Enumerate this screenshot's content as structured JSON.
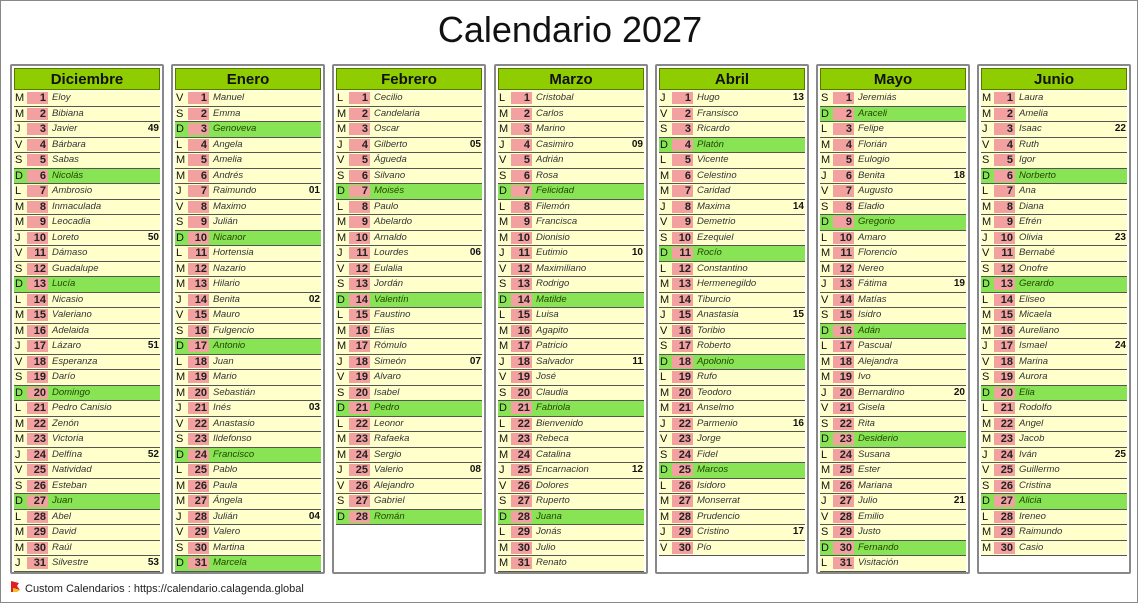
{
  "title": "Calendario 2027",
  "footer": "Custom Calendarios : https://calendario.calagenda.global",
  "colors": {
    "header": "#8fcc00",
    "row": "#ffffcc",
    "sunday": "#88e455",
    "day_box": "#f2a0a0"
  },
  "months": [
    {
      "name": "Diciembre",
      "days": [
        [
          "M",
          1,
          "Eloy",
          ""
        ],
        [
          "M",
          2,
          "Bibiana",
          ""
        ],
        [
          "J",
          3,
          "Javier",
          "49"
        ],
        [
          "V",
          4,
          "Bárbara",
          ""
        ],
        [
          "S",
          5,
          "Sabas",
          ""
        ],
        [
          "D",
          6,
          "Nicolás",
          ""
        ],
        [
          "L",
          7,
          "Ambrosio",
          ""
        ],
        [
          "M",
          8,
          "Inmaculada",
          ""
        ],
        [
          "M",
          9,
          "Leocadia",
          ""
        ],
        [
          "J",
          10,
          "Loreto",
          "50"
        ],
        [
          "V",
          11,
          "Dámaso",
          ""
        ],
        [
          "S",
          12,
          "Guadalupe",
          ""
        ],
        [
          "D",
          13,
          "Lucía",
          ""
        ],
        [
          "L",
          14,
          "Nicasio",
          ""
        ],
        [
          "M",
          15,
          "Valeriano",
          ""
        ],
        [
          "M",
          16,
          "Adelaida",
          ""
        ],
        [
          "J",
          17,
          "Lázaro",
          "51"
        ],
        [
          "V",
          18,
          "Esperanza",
          ""
        ],
        [
          "S",
          19,
          "Darío",
          ""
        ],
        [
          "D",
          20,
          "Domingo",
          ""
        ],
        [
          "L",
          21,
          "Pedro Canisio",
          ""
        ],
        [
          "M",
          22,
          "Zenón",
          ""
        ],
        [
          "M",
          23,
          "Victoria",
          ""
        ],
        [
          "J",
          24,
          "Delfína",
          "52"
        ],
        [
          "V",
          25,
          "Natividad",
          ""
        ],
        [
          "S",
          26,
          "Esteban",
          ""
        ],
        [
          "D",
          27,
          "Juan",
          ""
        ],
        [
          "L",
          28,
          "Abel",
          ""
        ],
        [
          "M",
          29,
          "David",
          ""
        ],
        [
          "M",
          30,
          "Raúl",
          ""
        ],
        [
          "J",
          31,
          "Silvestre",
          "53"
        ]
      ]
    },
    {
      "name": "Enero",
      "days": [
        [
          "V",
          1,
          "Manuel",
          ""
        ],
        [
          "S",
          2,
          "Emma",
          ""
        ],
        [
          "D",
          3,
          "Genoveva",
          ""
        ],
        [
          "L",
          4,
          "Angela",
          ""
        ],
        [
          "M",
          5,
          "Amelia",
          ""
        ],
        [
          "M",
          6,
          "Andrés",
          ""
        ],
        [
          "J",
          7,
          "Raimundo",
          "01"
        ],
        [
          "V",
          8,
          "Maximo",
          ""
        ],
        [
          "S",
          9,
          "Julián",
          ""
        ],
        [
          "D",
          10,
          "Nicanor",
          ""
        ],
        [
          "L",
          11,
          "Hortensia",
          ""
        ],
        [
          "M",
          12,
          "Nazario",
          ""
        ],
        [
          "M",
          13,
          "Hilario",
          ""
        ],
        [
          "J",
          14,
          "Benita",
          "02"
        ],
        [
          "V",
          15,
          "Mauro",
          ""
        ],
        [
          "S",
          16,
          "Fulgencio",
          ""
        ],
        [
          "D",
          17,
          "Antonio",
          ""
        ],
        [
          "L",
          18,
          "Juan",
          ""
        ],
        [
          "M",
          19,
          "Mario",
          ""
        ],
        [
          "M",
          20,
          "Sebastián",
          ""
        ],
        [
          "J",
          21,
          "Inés",
          "03"
        ],
        [
          "V",
          22,
          "Anastasio",
          ""
        ],
        [
          "S",
          23,
          "Ildefonso",
          ""
        ],
        [
          "D",
          24,
          "Francisco",
          ""
        ],
        [
          "L",
          25,
          "Pablo",
          ""
        ],
        [
          "M",
          26,
          "Paula",
          ""
        ],
        [
          "M",
          27,
          "Ángela",
          ""
        ],
        [
          "J",
          28,
          "Julián",
          "04"
        ],
        [
          "V",
          29,
          "Valero",
          ""
        ],
        [
          "S",
          30,
          "Martina",
          ""
        ],
        [
          "D",
          31,
          "Marcela",
          ""
        ]
      ]
    },
    {
      "name": "Febrero",
      "days": [
        [
          "L",
          1,
          "Cecilio",
          ""
        ],
        [
          "M",
          2,
          "Candelaria",
          ""
        ],
        [
          "M",
          3,
          "Oscar",
          ""
        ],
        [
          "J",
          4,
          "Gilberto",
          "05"
        ],
        [
          "V",
          5,
          "Águeda",
          ""
        ],
        [
          "S",
          6,
          "Silvano",
          ""
        ],
        [
          "D",
          7,
          "Moisés",
          ""
        ],
        [
          "L",
          8,
          "Paulo",
          ""
        ],
        [
          "M",
          9,
          "Abelardo",
          ""
        ],
        [
          "M",
          10,
          "Arnaldo",
          ""
        ],
        [
          "J",
          11,
          "Lourdes",
          "06"
        ],
        [
          "V",
          12,
          "Eulalia",
          ""
        ],
        [
          "S",
          13,
          "Jordán",
          ""
        ],
        [
          "D",
          14,
          "Valentín",
          ""
        ],
        [
          "L",
          15,
          "Faustino",
          ""
        ],
        [
          "M",
          16,
          "Elias",
          ""
        ],
        [
          "M",
          17,
          "Rómulo",
          ""
        ],
        [
          "J",
          18,
          "Simeón",
          "07"
        ],
        [
          "V",
          19,
          "Alvaro",
          ""
        ],
        [
          "S",
          20,
          "Isabel",
          ""
        ],
        [
          "D",
          21,
          "Pedro",
          ""
        ],
        [
          "L",
          22,
          "Leonor",
          ""
        ],
        [
          "M",
          23,
          "Rafaeka",
          ""
        ],
        [
          "M",
          24,
          "Sergio",
          ""
        ],
        [
          "J",
          25,
          "Valerio",
          "08"
        ],
        [
          "V",
          26,
          "Alejandro",
          ""
        ],
        [
          "S",
          27,
          "Gabriel",
          ""
        ],
        [
          "D",
          28,
          "Román",
          ""
        ]
      ]
    },
    {
      "name": "Marzo",
      "days": [
        [
          "L",
          1,
          "Cristobal",
          ""
        ],
        [
          "M",
          2,
          "Carlos",
          ""
        ],
        [
          "M",
          3,
          "Marino",
          ""
        ],
        [
          "J",
          4,
          "Casimiro",
          "09"
        ],
        [
          "V",
          5,
          "Adrián",
          ""
        ],
        [
          "S",
          6,
          "Rosa",
          ""
        ],
        [
          "D",
          7,
          "Felicidad",
          ""
        ],
        [
          "L",
          8,
          "Filemón",
          ""
        ],
        [
          "M",
          9,
          "Francisca",
          ""
        ],
        [
          "M",
          10,
          "Dionisio",
          ""
        ],
        [
          "J",
          11,
          "Eutimio",
          "10"
        ],
        [
          "V",
          12,
          "Maximiliano",
          ""
        ],
        [
          "S",
          13,
          "Rodrigo",
          ""
        ],
        [
          "D",
          14,
          "Matilde",
          ""
        ],
        [
          "L",
          15,
          "Luisa",
          ""
        ],
        [
          "M",
          16,
          "Agapito",
          ""
        ],
        [
          "M",
          17,
          "Patricio",
          ""
        ],
        [
          "J",
          18,
          "Salvador",
          "11"
        ],
        [
          "V",
          19,
          "José",
          ""
        ],
        [
          "S",
          20,
          "Claudia",
          ""
        ],
        [
          "D",
          21,
          "Fabriola",
          ""
        ],
        [
          "L",
          22,
          "Bienvenido",
          ""
        ],
        [
          "M",
          23,
          "Rebeca",
          ""
        ],
        [
          "M",
          24,
          "Catalina",
          ""
        ],
        [
          "J",
          25,
          "Encarnacion",
          "12"
        ],
        [
          "V",
          26,
          "Dolores",
          ""
        ],
        [
          "S",
          27,
          "Ruperto",
          ""
        ],
        [
          "D",
          28,
          "Juana",
          ""
        ],
        [
          "L",
          29,
          "Jonás",
          ""
        ],
        [
          "M",
          30,
          "Julio",
          ""
        ],
        [
          "M",
          31,
          "Renato",
          ""
        ]
      ]
    },
    {
      "name": "Abril",
      "days": [
        [
          "J",
          1,
          "Hugo",
          "13"
        ],
        [
          "V",
          2,
          "Fransisco",
          ""
        ],
        [
          "S",
          3,
          "Ricardo",
          ""
        ],
        [
          "D",
          4,
          "Platón",
          ""
        ],
        [
          "L",
          5,
          "Vicente",
          ""
        ],
        [
          "M",
          6,
          "Celestino",
          ""
        ],
        [
          "M",
          7,
          "Caridad",
          ""
        ],
        [
          "J",
          8,
          "Maxima",
          "14"
        ],
        [
          "V",
          9,
          "Demetrio",
          ""
        ],
        [
          "S",
          10,
          "Ezequiel",
          ""
        ],
        [
          "D",
          11,
          "Rocío",
          ""
        ],
        [
          "L",
          12,
          "Constantino",
          ""
        ],
        [
          "M",
          13,
          "Hermenegildo",
          ""
        ],
        [
          "M",
          14,
          "Tiburcio",
          ""
        ],
        [
          "J",
          15,
          "Anastasia",
          "15"
        ],
        [
          "V",
          16,
          "Toribio",
          ""
        ],
        [
          "S",
          17,
          "Roberto",
          ""
        ],
        [
          "D",
          18,
          "Apolonio",
          ""
        ],
        [
          "L",
          19,
          "Rufo",
          ""
        ],
        [
          "M",
          20,
          "Teodoro",
          ""
        ],
        [
          "M",
          21,
          "Anselmo",
          ""
        ],
        [
          "J",
          22,
          "Parmenio",
          "16"
        ],
        [
          "V",
          23,
          "Jorge",
          ""
        ],
        [
          "S",
          24,
          "Fidel",
          ""
        ],
        [
          "D",
          25,
          "Marcos",
          ""
        ],
        [
          "L",
          26,
          "Isidoro",
          ""
        ],
        [
          "M",
          27,
          "Monserrat",
          ""
        ],
        [
          "M",
          28,
          "Prudencio",
          ""
        ],
        [
          "J",
          29,
          "Cristino",
          "17"
        ],
        [
          "V",
          30,
          "Pío",
          ""
        ]
      ]
    },
    {
      "name": "Mayo",
      "days": [
        [
          "S",
          1,
          "Jeremiás",
          ""
        ],
        [
          "D",
          2,
          "Araceli",
          ""
        ],
        [
          "L",
          3,
          "Felipe",
          ""
        ],
        [
          "M",
          4,
          "Florián",
          ""
        ],
        [
          "M",
          5,
          "Eulogio",
          ""
        ],
        [
          "J",
          6,
          "Benita",
          "18"
        ],
        [
          "V",
          7,
          "Augusto",
          ""
        ],
        [
          "S",
          8,
          "Eladio",
          ""
        ],
        [
          "D",
          9,
          "Gregorio",
          ""
        ],
        [
          "L",
          10,
          "Amaro",
          ""
        ],
        [
          "M",
          11,
          "Florencio",
          ""
        ],
        [
          "M",
          12,
          "Nereo",
          ""
        ],
        [
          "J",
          13,
          "Fátima",
          "19"
        ],
        [
          "V",
          14,
          "Matías",
          ""
        ],
        [
          "S",
          15,
          "Isidro",
          ""
        ],
        [
          "D",
          16,
          "Adán",
          ""
        ],
        [
          "L",
          17,
          "Pascual",
          ""
        ],
        [
          "M",
          18,
          "Alejandra",
          ""
        ],
        [
          "M",
          19,
          "Ivo",
          ""
        ],
        [
          "J",
          20,
          "Bernardino",
          "20"
        ],
        [
          "V",
          21,
          "Gisela",
          ""
        ],
        [
          "S",
          22,
          "Rita",
          ""
        ],
        [
          "D",
          23,
          "Desiderio",
          ""
        ],
        [
          "L",
          24,
          "Susana",
          ""
        ],
        [
          "M",
          25,
          "Ester",
          ""
        ],
        [
          "M",
          26,
          "Mariana",
          ""
        ],
        [
          "J",
          27,
          "Julio",
          "21"
        ],
        [
          "V",
          28,
          "Emilio",
          ""
        ],
        [
          "S",
          29,
          "Justo",
          ""
        ],
        [
          "D",
          30,
          "Fernando",
          ""
        ],
        [
          "L",
          31,
          "Visitación",
          ""
        ]
      ]
    },
    {
      "name": "Junio",
      "days": [
        [
          "M",
          1,
          "Laura",
          ""
        ],
        [
          "M",
          2,
          "Amelia",
          ""
        ],
        [
          "J",
          3,
          "Isaac",
          "22"
        ],
        [
          "V",
          4,
          "Ruth",
          ""
        ],
        [
          "S",
          5,
          "Igor",
          ""
        ],
        [
          "D",
          6,
          "Norberto",
          ""
        ],
        [
          "L",
          7,
          "Ana",
          ""
        ],
        [
          "M",
          8,
          "Diana",
          ""
        ],
        [
          "M",
          9,
          "Efrén",
          ""
        ],
        [
          "J",
          10,
          "Olivia",
          "23"
        ],
        [
          "V",
          11,
          "Bernabé",
          ""
        ],
        [
          "S",
          12,
          "Onofre",
          ""
        ],
        [
          "D",
          13,
          "Gerardo",
          ""
        ],
        [
          "L",
          14,
          "Eliseo",
          ""
        ],
        [
          "M",
          15,
          "Micaela",
          ""
        ],
        [
          "M",
          16,
          "Aureliano",
          ""
        ],
        [
          "J",
          17,
          "Ismael",
          "24"
        ],
        [
          "V",
          18,
          "Marina",
          ""
        ],
        [
          "S",
          19,
          "Aurora",
          ""
        ],
        [
          "D",
          20,
          "Elia",
          ""
        ],
        [
          "L",
          21,
          "Rodolfo",
          ""
        ],
        [
          "M",
          22,
          "Angel",
          ""
        ],
        [
          "M",
          23,
          "Jacob",
          ""
        ],
        [
          "J",
          24,
          "Iván",
          "25"
        ],
        [
          "V",
          25,
          "Guillermo",
          ""
        ],
        [
          "S",
          26,
          "Cristina",
          ""
        ],
        [
          "D",
          27,
          "Alicia",
          ""
        ],
        [
          "L",
          28,
          "Ireneo",
          ""
        ],
        [
          "M",
          29,
          "Raimundo",
          ""
        ],
        [
          "M",
          30,
          "Casio",
          ""
        ]
      ]
    }
  ]
}
